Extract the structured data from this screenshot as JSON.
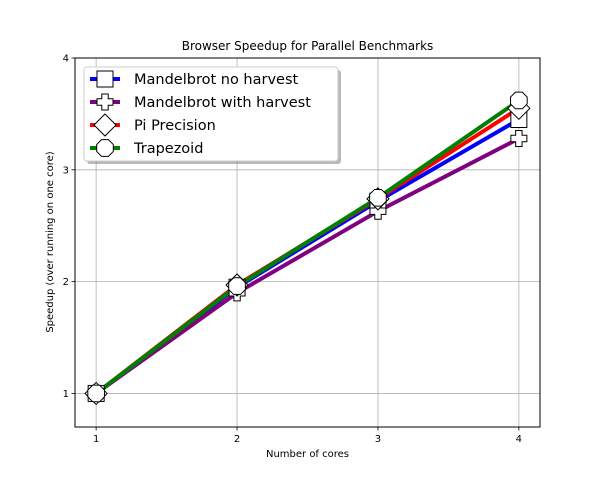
{
  "chart_data": {
    "type": "line",
    "title": "Browser Speedup for Parallel Benchmarks",
    "xlabel": "Number of cores",
    "ylabel": "Speedup (over running on one core)",
    "xlim": [
      0.85,
      4.15
    ],
    "ylim": [
      0.7,
      4.0
    ],
    "xticks": [
      1,
      2,
      3,
      4
    ],
    "yticks": [
      1,
      2,
      3,
      4
    ],
    "grid": true,
    "legend_position": "top-left",
    "x": [
      1,
      2,
      3,
      4
    ],
    "series": [
      {
        "name": "Mandelbrot no harvest",
        "color": "#0000ff",
        "marker": "square",
        "values": [
          1.0,
          1.95,
          2.72,
          3.45
        ]
      },
      {
        "name": "Mandelbrot with harvest",
        "color": "#800080",
        "marker": "plus",
        "values": [
          1.0,
          1.9,
          2.63,
          3.28
        ]
      },
      {
        "name": "Pi Precision",
        "color": "#ff0000",
        "marker": "diamond",
        "values": [
          1.0,
          1.97,
          2.74,
          3.55
        ]
      },
      {
        "name": "Trapezoid",
        "color": "#008000",
        "marker": "octagon",
        "values": [
          1.0,
          1.96,
          2.75,
          3.62
        ]
      }
    ]
  }
}
